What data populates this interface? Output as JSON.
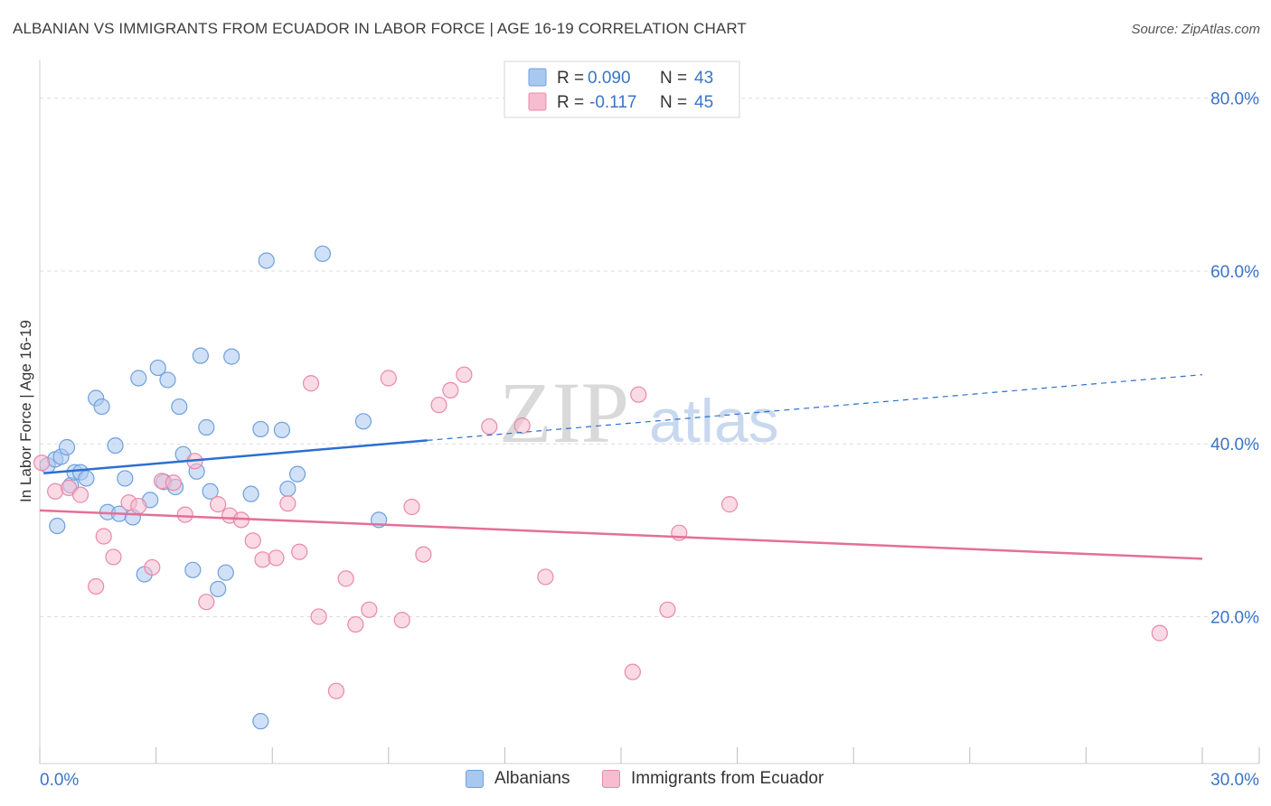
{
  "header": {
    "title": "ALBANIAN VS IMMIGRANTS FROM ECUADOR IN LABOR FORCE | AGE 16-19 CORRELATION CHART",
    "source": "Source: ZipAtlas.com"
  },
  "watermark": {
    "zip": "ZIP",
    "atlas": "atlas"
  },
  "colors": {
    "blue_fill": "#a9c8f0",
    "blue_stroke": "#6f9fdc",
    "blue_line": "#2c6fcf",
    "pink_fill": "#f6bcd0",
    "pink_stroke": "#ea88a9",
    "pink_line": "#e46f99",
    "value_text": "#3a74c9",
    "grid": "#dcdcdc"
  },
  "chart_data": {
    "type": "scatter",
    "title": "ALBANIAN VS IMMIGRANTS FROM ECUADOR IN LABOR FORCE | AGE 16-19 CORRELATION CHART",
    "xlabel": "",
    "ylabel": "In Labor Force | Age 16-19",
    "xlim": [
      0,
      30
    ],
    "ylim": [
      3,
      83
    ],
    "x_tick_labels": [
      "0.0%",
      "30.0%"
    ],
    "y_ticks": [
      20,
      40,
      60,
      80
    ],
    "y_tick_labels": [
      "20.0%",
      "40.0%",
      "60.0%",
      "80.0%"
    ],
    "grid": true,
    "legend_position": "top-center",
    "stats": [
      {
        "r_label": "R =",
        "r_value": "0.090",
        "n_label": "N =",
        "n_value": "43"
      },
      {
        "r_label": "R =",
        "r_value": "-0.117",
        "n_label": "N =",
        "n_value": "45"
      }
    ],
    "series": [
      {
        "name": "Albanians",
        "color": "#a9c8f0",
        "trend": {
          "x": [
            0.1,
            10.0
          ],
          "y": [
            36.6,
            40.4
          ],
          "dashed_to": [
            30.0,
            48.0
          ]
        },
        "points": [
          [
            0.2,
            37.5
          ],
          [
            0.4,
            38.2
          ],
          [
            0.55,
            38.5
          ],
          [
            0.7,
            39.6
          ],
          [
            0.8,
            35.2
          ],
          [
            0.9,
            36.7
          ],
          [
            1.05,
            36.7
          ],
          [
            1.2,
            36.0
          ],
          [
            0.45,
            30.5
          ],
          [
            1.45,
            45.3
          ],
          [
            1.6,
            44.3
          ],
          [
            1.75,
            32.1
          ],
          [
            1.95,
            39.8
          ],
          [
            2.05,
            31.9
          ],
          [
            2.2,
            36.0
          ],
          [
            2.4,
            31.5
          ],
          [
            2.55,
            47.6
          ],
          [
            2.7,
            24.9
          ],
          [
            2.85,
            33.5
          ],
          [
            3.05,
            48.8
          ],
          [
            3.2,
            35.6
          ],
          [
            3.3,
            47.4
          ],
          [
            3.5,
            35.0
          ],
          [
            3.6,
            44.3
          ],
          [
            3.7,
            38.8
          ],
          [
            3.95,
            25.4
          ],
          [
            4.05,
            36.8
          ],
          [
            4.15,
            50.2
          ],
          [
            4.3,
            41.9
          ],
          [
            4.4,
            34.5
          ],
          [
            4.6,
            23.2
          ],
          [
            4.8,
            25.1
          ],
          [
            4.95,
            50.1
          ],
          [
            5.45,
            34.2
          ],
          [
            5.7,
            41.7
          ],
          [
            5.85,
            61.2
          ],
          [
            6.25,
            41.6
          ],
          [
            6.4,
            34.8
          ],
          [
            6.65,
            36.5
          ],
          [
            7.3,
            62.0
          ],
          [
            8.35,
            42.6
          ],
          [
            8.75,
            31.2
          ],
          [
            5.7,
            7.9
          ]
        ]
      },
      {
        "name": "Immigrants from Ecuador",
        "color": "#f6bcd0",
        "trend": {
          "x": [
            0.0,
            30.0
          ],
          "y": [
            32.3,
            26.7
          ]
        },
        "points": [
          [
            0.05,
            37.8
          ],
          [
            0.4,
            34.5
          ],
          [
            0.75,
            34.9
          ],
          [
            1.05,
            34.1
          ],
          [
            1.45,
            23.5
          ],
          [
            1.65,
            29.3
          ],
          [
            1.9,
            26.9
          ],
          [
            2.3,
            33.2
          ],
          [
            2.55,
            32.8
          ],
          [
            2.9,
            25.7
          ],
          [
            3.15,
            35.7
          ],
          [
            3.45,
            35.5
          ],
          [
            3.75,
            31.8
          ],
          [
            4.0,
            38.0
          ],
          [
            4.3,
            21.7
          ],
          [
            4.6,
            33.0
          ],
          [
            4.9,
            31.7
          ],
          [
            5.2,
            31.2
          ],
          [
            5.5,
            28.8
          ],
          [
            5.75,
            26.6
          ],
          [
            6.1,
            26.8
          ],
          [
            6.4,
            33.1
          ],
          [
            6.7,
            27.5
          ],
          [
            7.0,
            47.0
          ],
          [
            7.2,
            20.0
          ],
          [
            7.65,
            11.4
          ],
          [
            7.9,
            24.4
          ],
          [
            8.15,
            19.1
          ],
          [
            8.5,
            20.8
          ],
          [
            9.0,
            47.6
          ],
          [
            9.35,
            19.6
          ],
          [
            9.6,
            32.7
          ],
          [
            9.9,
            27.2
          ],
          [
            10.3,
            44.5
          ],
          [
            10.6,
            46.2
          ],
          [
            10.95,
            48.0
          ],
          [
            11.6,
            42.0
          ],
          [
            12.45,
            42.1
          ],
          [
            13.05,
            24.6
          ],
          [
            15.3,
            13.6
          ],
          [
            15.45,
            45.7
          ],
          [
            16.2,
            20.8
          ],
          [
            16.5,
            29.7
          ],
          [
            17.8,
            33.0
          ],
          [
            28.9,
            18.1
          ]
        ]
      }
    ]
  }
}
